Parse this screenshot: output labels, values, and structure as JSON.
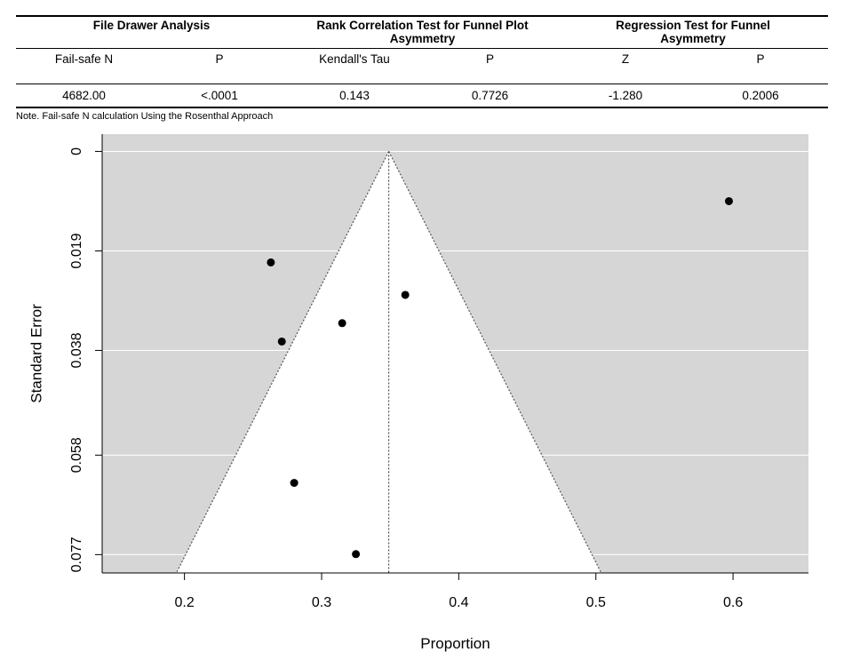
{
  "table": {
    "groups": [
      {
        "label": "File Drawer Analysis"
      },
      {
        "label": "Rank Correlation Test for Funnel Plot Asymmetry"
      },
      {
        "label": "Regression Test for Funnel Asymmetry"
      }
    ],
    "columns": [
      "Fail-safe N",
      "P",
      "Kendall's Tau",
      "P",
      "Z",
      "P"
    ],
    "values": [
      "4682.00",
      "<.0001",
      "0.143",
      "0.7726",
      "-1.280",
      "0.2006"
    ],
    "note": "Note. Fail-safe N calculation Using the Rosenthal Approach"
  },
  "chart_data": {
    "type": "scatter",
    "subtype": "funnel plot",
    "xlabel": "Proportion",
    "ylabel": "Standard Error",
    "x_ticks": [
      "0.2",
      "0.3",
      "0.4",
      "0.5",
      "0.6"
    ],
    "y_ticks": [
      "0",
      "0.019",
      "0.038",
      "0.058",
      "0.077"
    ],
    "xlim": [
      0.14,
      0.655
    ],
    "ylim": [
      0.0805,
      -0.0033
    ],
    "y_inverted": true,
    "center_estimate": 0.349,
    "funnel_se_max": 0.077,
    "points": [
      {
        "x": 0.597,
        "y": 0.0095
      },
      {
        "x": 0.263,
        "y": 0.0212
      },
      {
        "x": 0.361,
        "y": 0.0274
      },
      {
        "x": 0.315,
        "y": 0.0328
      },
      {
        "x": 0.271,
        "y": 0.0363
      },
      {
        "x": 0.28,
        "y": 0.0633
      },
      {
        "x": 0.325,
        "y": 0.0769
      }
    ],
    "colors": {
      "panel": "#d6d6d6",
      "funnel": "#ffffff",
      "point": "#000000",
      "grid": "#ffffff"
    }
  }
}
